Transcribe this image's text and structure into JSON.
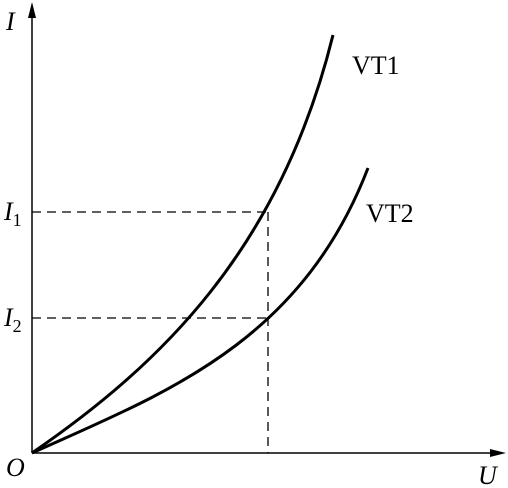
{
  "axes": {
    "y_label": "I",
    "x_label": "U",
    "origin": "O"
  },
  "curves": [
    {
      "label": "VT1"
    },
    {
      "label": "VT2"
    }
  ],
  "levels": [
    {
      "symbol": "I",
      "subscript": "1"
    },
    {
      "symbol": "I",
      "subscript": "2"
    }
  ]
}
